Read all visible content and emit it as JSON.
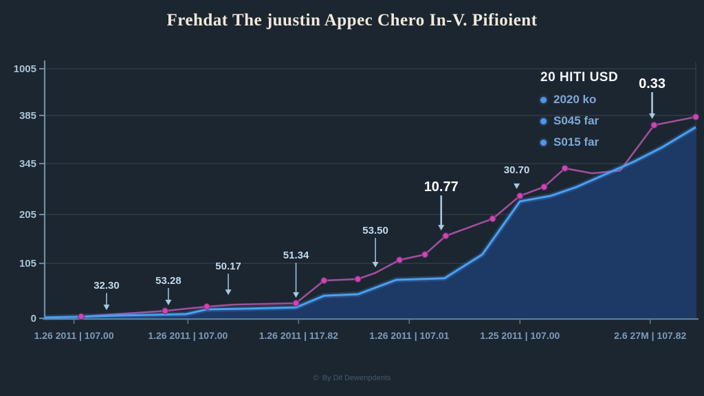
{
  "title": "Frehdat The juustin Appec Chero In-V. Pifioient",
  "legend": {
    "title": "20 HITI USD",
    "items": [
      {
        "label": "2020 ko"
      },
      {
        "label": "S045 far"
      },
      {
        "label": "S015 far"
      }
    ]
  },
  "footer": {
    "text": "By Dit Dewenpdents",
    "icon": "©"
  },
  "colors": {
    "background": "#1c2630",
    "grid": "#33414d",
    "axis": "#6d8da1",
    "bottom_axis": "#5d7f99",
    "area_fill": "#1e3a69",
    "blue_line": "#4ba0f4",
    "magenta_line": "#a04f9c",
    "magenta_dot": "#d245ae",
    "magenta_dot_edge": "#6e2d7e",
    "tick_label": "#a9c3d6",
    "x_label": "#7e9cb8",
    "annotation": "#c2d9ec",
    "annotation_bold": "#ffffff",
    "arrow": "#a8c9e2",
    "legend_dot": "#4f96e8"
  },
  "chart_data": {
    "type": "area",
    "title": "Frehdat The juustin Appec Chero In-V. Pifioient",
    "xlabel": "",
    "ylabel": "",
    "ylim": [
      0,
      1005
    ],
    "grid": true,
    "legend_position": "top-right",
    "y_ticks": [
      {
        "label": "1005",
        "f": 1.0
      },
      {
        "label": "385",
        "f": 0.813
      },
      {
        "label": "345",
        "f": 0.62
      },
      {
        "label": "205",
        "f": 0.416
      },
      {
        "label": "105",
        "f": 0.22
      },
      {
        "label": "0",
        "f": 0.0
      }
    ],
    "x_labels": [
      {
        "label": "1.26 2011 | 107.00",
        "f": 0.045
      },
      {
        "label": "1.26 2011 | 107.00",
        "f": 0.22
      },
      {
        "label": "1.26 2011 | 117.82",
        "f": 0.39
      },
      {
        "label": "1.26 2011 | 107.01",
        "f": 0.56
      },
      {
        "label": "1.25 2011 | 107.00",
        "f": 0.73
      },
      {
        "label": "2.6 27M | 107.82",
        "f": 0.93
      }
    ],
    "series": [
      {
        "name": "blue-area-series",
        "type": "area-line",
        "points": [
          [
            0.0,
            3
          ],
          [
            0.053,
            6
          ],
          [
            0.11,
            11
          ],
          [
            0.217,
            17
          ],
          [
            0.249,
            36
          ],
          [
            0.312,
            39
          ],
          [
            0.386,
            44
          ],
          [
            0.429,
            91
          ],
          [
            0.481,
            97
          ],
          [
            0.54,
            155
          ],
          [
            0.614,
            161
          ],
          [
            0.672,
            257
          ],
          [
            0.73,
            471
          ],
          [
            0.777,
            493
          ],
          [
            0.817,
            529
          ],
          [
            0.862,
            581
          ],
          [
            0.905,
            631
          ],
          [
            0.947,
            687
          ],
          [
            1.0,
            770
          ]
        ]
      },
      {
        "name": "magenta-marker-series",
        "type": "line",
        "points": [
          [
            0.0,
            3,
            0
          ],
          [
            0.056,
            7,
            1
          ],
          [
            0.185,
            30,
            1
          ],
          [
            0.249,
            47,
            1
          ],
          [
            0.291,
            55,
            0
          ],
          [
            0.386,
            61,
            1
          ],
          [
            0.429,
            152,
            1
          ],
          [
            0.481,
            158,
            1
          ],
          [
            0.508,
            183,
            0
          ],
          [
            0.545,
            235,
            1
          ],
          [
            0.584,
            257,
            1
          ],
          [
            0.616,
            332,
            1
          ],
          [
            0.688,
            401,
            1
          ],
          [
            0.73,
            493,
            1
          ],
          [
            0.767,
            529,
            1
          ],
          [
            0.799,
            604,
            1
          ],
          [
            0.841,
            584,
            0
          ],
          [
            0.884,
            595,
            0
          ],
          [
            0.936,
            778,
            1
          ],
          [
            1.0,
            811,
            1
          ]
        ]
      }
    ],
    "annotations": [
      {
        "label": "32.30",
        "fx": 0.095,
        "v": 30,
        "len": 24,
        "bold": false
      },
      {
        "label": "53.28",
        "fx": 0.19,
        "v": 50,
        "len": 24,
        "bold": false
      },
      {
        "label": "50.17",
        "fx": 0.282,
        "v": 91,
        "len": 30,
        "bold": false
      },
      {
        "label": "51.34",
        "fx": 0.386,
        "v": 80,
        "len": 50,
        "bold": false
      },
      {
        "label": "53.50",
        "fx": 0.508,
        "v": 202,
        "len": 42,
        "bold": false
      },
      {
        "label": "10.77",
        "fx": 0.609,
        "v": 351,
        "len": 50,
        "bold": true
      },
      {
        "label": "30.70",
        "fx": 0.725,
        "v": 518,
        "len": 16,
        "bold": false
      },
      {
        "label": "0.33",
        "fx": 0.933,
        "v": 800,
        "len": 38,
        "bold": true
      }
    ]
  }
}
